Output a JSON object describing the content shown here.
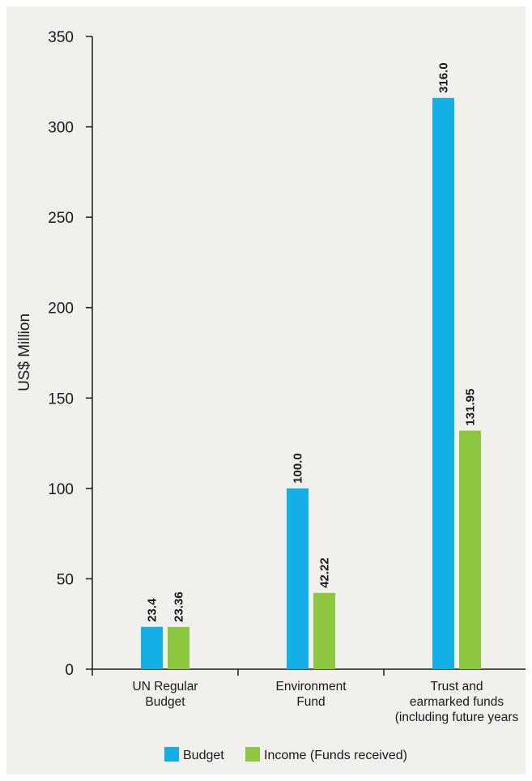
{
  "colors": {
    "background": "#f1f0ec",
    "budget": "#13aee6",
    "income": "#8dc63f",
    "axis": "#1a1a1a"
  },
  "chart_data": {
    "type": "bar",
    "title": "",
    "xlabel": "",
    "ylabel": "US$ Million",
    "ylim": [
      0,
      350
    ],
    "yticks": [
      0,
      50,
      100,
      150,
      200,
      250,
      300,
      350
    ],
    "grid": false,
    "legend_position": "bottom-center",
    "categories": [
      [
        "UN Regular",
        "Budget"
      ],
      [
        "Environment",
        "Fund"
      ],
      [
        "Trust and",
        "earmarked funds",
        "(including future years"
      ]
    ],
    "series": [
      {
        "name": "Budget",
        "color": "#13aee6",
        "values": [
          23.4,
          100.0,
          316.0
        ],
        "labels": [
          "23.4",
          "100.0",
          "316.0"
        ]
      },
      {
        "name": "Income (Funds received)",
        "color": "#8dc63f",
        "values": [
          23.36,
          42.22,
          131.95
        ],
        "labels": [
          "23.36",
          "42.22",
          "131.95"
        ]
      }
    ]
  }
}
